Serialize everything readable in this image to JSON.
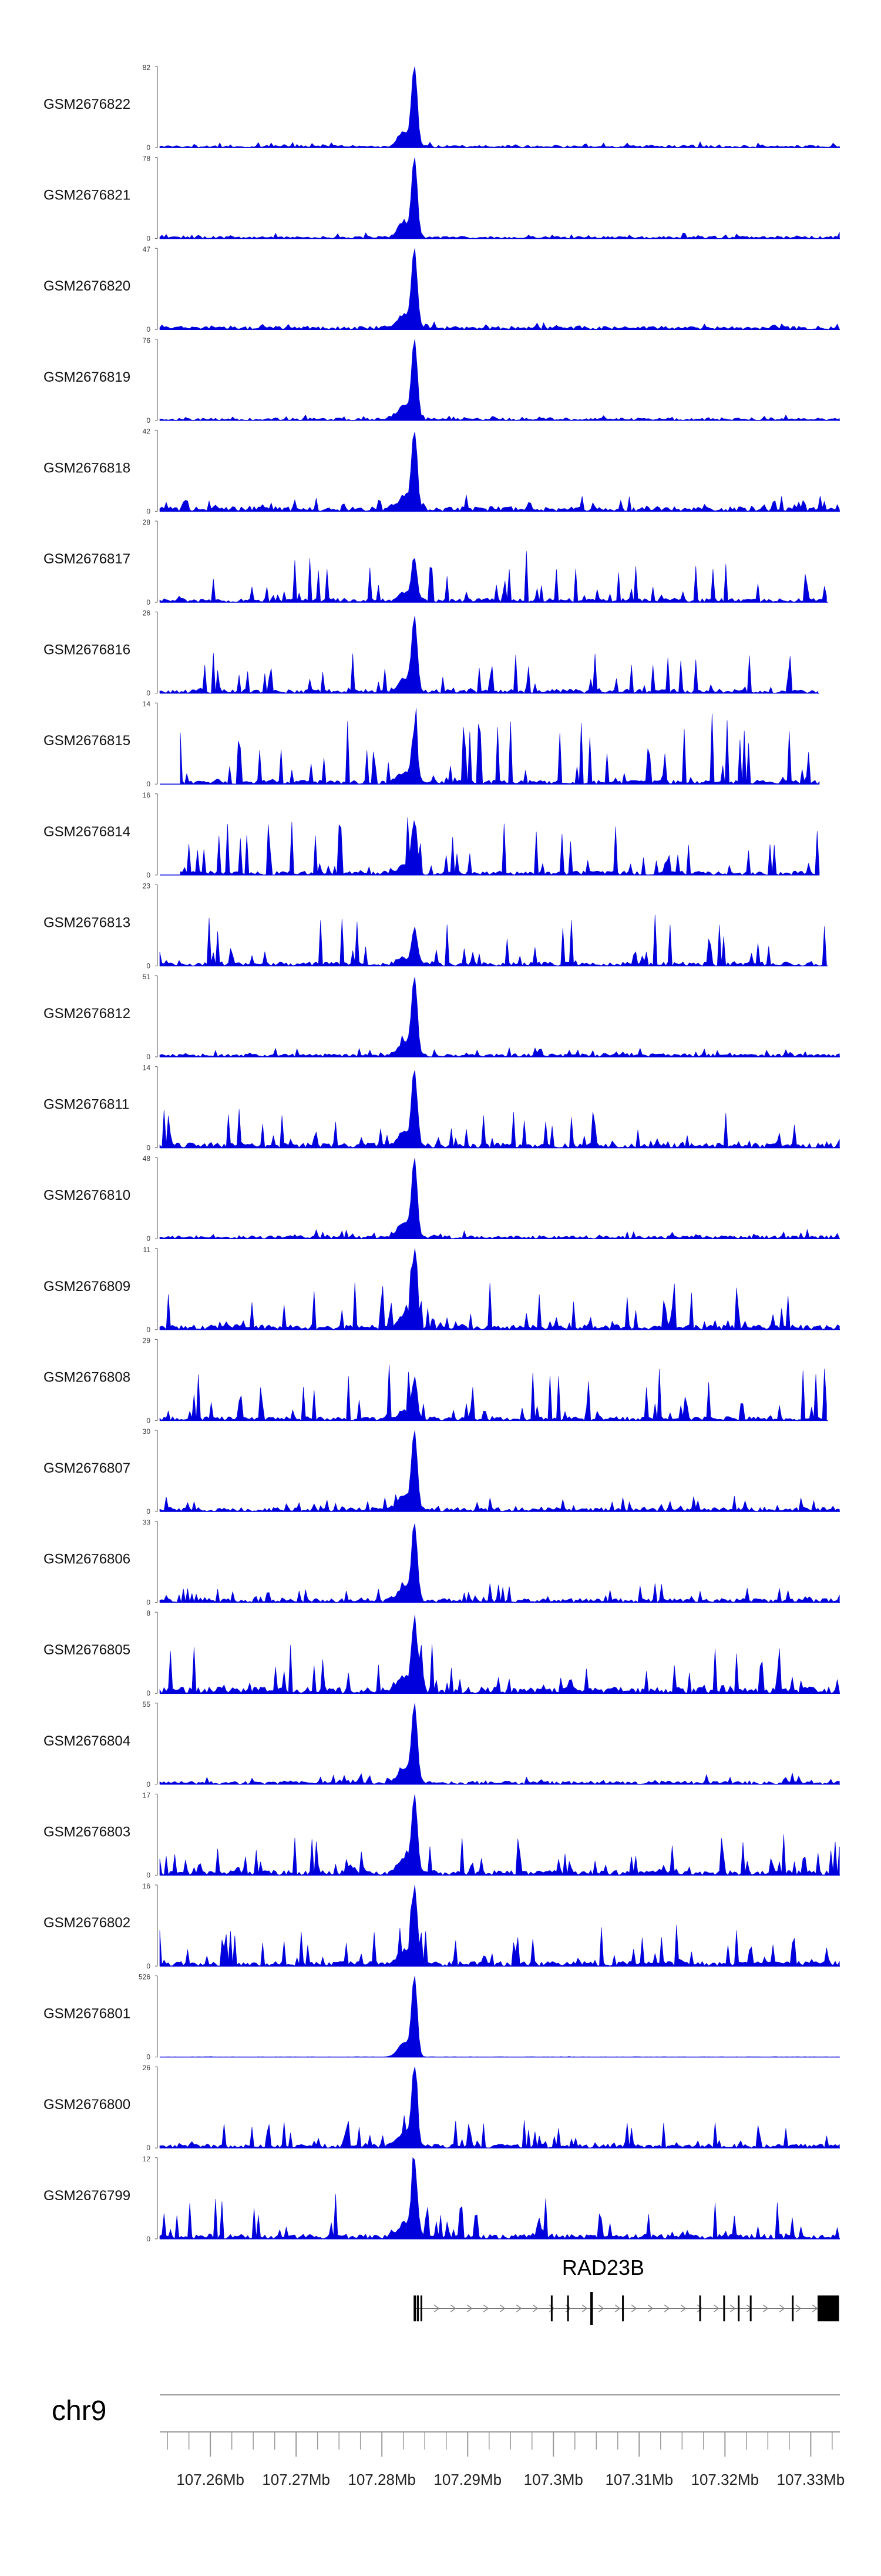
{
  "chart_data": {
    "type": "area",
    "chromosome": "chr9",
    "gene": {
      "name": "RAD23B",
      "strand": "+",
      "start": 107.2837,
      "end": 107.3333
    },
    "xlim": [
      107.2541,
      107.3334
    ],
    "x_ticks": [
      {
        "value": 107.26,
        "label": "107.26Mb"
      },
      {
        "value": 107.27,
        "label": "107.27Mb"
      },
      {
        "value": 107.28,
        "label": "107.28Mb"
      },
      {
        "value": 107.29,
        "label": "107.29Mb"
      },
      {
        "value": 107.3,
        "label": "107.3Mb"
      },
      {
        "value": 107.31,
        "label": "107.31Mb"
      },
      {
        "value": 107.32,
        "label": "107.32Mb"
      },
      {
        "value": 107.33,
        "label": "107.33Mb"
      }
    ],
    "series_color": "#0000dd",
    "tracks": [
      {
        "name": "GSM2676822",
        "ymax": 82,
        "peak_height": 80,
        "background": 0.03,
        "noise": 0.05,
        "xmax": 107.3334,
        "seed": 822
      },
      {
        "name": "GSM2676821",
        "ymax": 78,
        "peak_height": 76,
        "background": 0.03,
        "noise": 0.05,
        "xmax": 107.3334,
        "seed": 821
      },
      {
        "name": "GSM2676820",
        "ymax": 47,
        "peak_height": 45,
        "background": 0.04,
        "noise": 0.06,
        "xmax": 107.3334,
        "seed": 820
      },
      {
        "name": "GSM2676819",
        "ymax": 76,
        "peak_height": 74,
        "background": 0.03,
        "noise": 0.05,
        "xmax": 107.3334,
        "seed": 819
      },
      {
        "name": "GSM2676818",
        "ymax": 42,
        "peak_height": 40,
        "background": 0.06,
        "noise": 0.15,
        "xmax": 107.3334,
        "seed": 818
      },
      {
        "name": "GSM2676817",
        "ymax": 28,
        "peak_height": 14,
        "background": 0.05,
        "noise": 0.6,
        "xmax": 107.332,
        "seed": 817
      },
      {
        "name": "GSM2676816",
        "ymax": 26,
        "peak_height": 24,
        "background": 0.05,
        "noise": 0.45,
        "xmax": 107.331,
        "seed": 816
      },
      {
        "name": "GSM2676815",
        "ymax": 14,
        "peak_height": 9,
        "background": 0.05,
        "noise": 0.85,
        "xmax": 107.331,
        "seed": 815
      },
      {
        "name": "GSM2676814",
        "ymax": 16,
        "peak_height": 10,
        "background": 0.05,
        "noise": 0.65,
        "xmax": 107.331,
        "seed": 814
      },
      {
        "name": "GSM2676813",
        "ymax": 23,
        "peak_height": 10,
        "background": 0.05,
        "noise": 0.7,
        "xmax": 107.332,
        "seed": 813
      },
      {
        "name": "GSM2676812",
        "ymax": 51,
        "peak_height": 49,
        "background": 0.04,
        "noise": 0.08,
        "xmax": 107.3334,
        "seed": 812
      },
      {
        "name": "GSM2676811",
        "ymax": 14,
        "peak_height": 13,
        "background": 0.06,
        "noise": 0.5,
        "xmax": 107.3334,
        "seed": 811
      },
      {
        "name": "GSM2676810",
        "ymax": 48,
        "peak_height": 46,
        "background": 0.04,
        "noise": 0.08,
        "xmax": 107.3334,
        "seed": 810
      },
      {
        "name": "GSM2676809",
        "ymax": 11,
        "peak_height": 10,
        "background": 0.06,
        "noise": 0.6,
        "xmax": 107.3334,
        "seed": 809
      },
      {
        "name": "GSM2676808",
        "ymax": 29,
        "peak_height": 14,
        "background": 0.05,
        "noise": 0.65,
        "xmax": 107.332,
        "seed": 808
      },
      {
        "name": "GSM2676807",
        "ymax": 30,
        "peak_height": 29,
        "background": 0.05,
        "noise": 0.15,
        "xmax": 107.3334,
        "seed": 807
      },
      {
        "name": "GSM2676806",
        "ymax": 33,
        "peak_height": 31,
        "background": 0.05,
        "noise": 0.2,
        "xmax": 107.3334,
        "seed": 806
      },
      {
        "name": "GSM2676805",
        "ymax": 8,
        "peak_height": 7,
        "background": 0.08,
        "noise": 0.7,
        "xmax": 107.3334,
        "seed": 805
      },
      {
        "name": "GSM2676804",
        "ymax": 55,
        "peak_height": 53,
        "background": 0.04,
        "noise": 0.1,
        "xmax": 107.3334,
        "seed": 804
      },
      {
        "name": "GSM2676803",
        "ymax": 17,
        "peak_height": 16,
        "background": 0.06,
        "noise": 0.45,
        "xmax": 107.3334,
        "seed": 803
      },
      {
        "name": "GSM2676802",
        "ymax": 16,
        "peak_height": 15,
        "background": 0.06,
        "noise": 0.45,
        "xmax": 107.3334,
        "seed": 802
      },
      {
        "name": "GSM2676801",
        "ymax": 526,
        "peak_height": 520,
        "background": 0.004,
        "noise": 0.004,
        "xmax": 107.3334,
        "seed": 801
      },
      {
        "name": "GSM2676800",
        "ymax": 26,
        "peak_height": 25,
        "background": 0.05,
        "noise": 0.35,
        "xmax": 107.3334,
        "seed": 800
      },
      {
        "name": "GSM2676799",
        "ymax": 12,
        "peak_height": 11,
        "background": 0.06,
        "noise": 0.5,
        "xmax": 107.3334,
        "seed": 799
      }
    ],
    "ymin_label": "0"
  }
}
